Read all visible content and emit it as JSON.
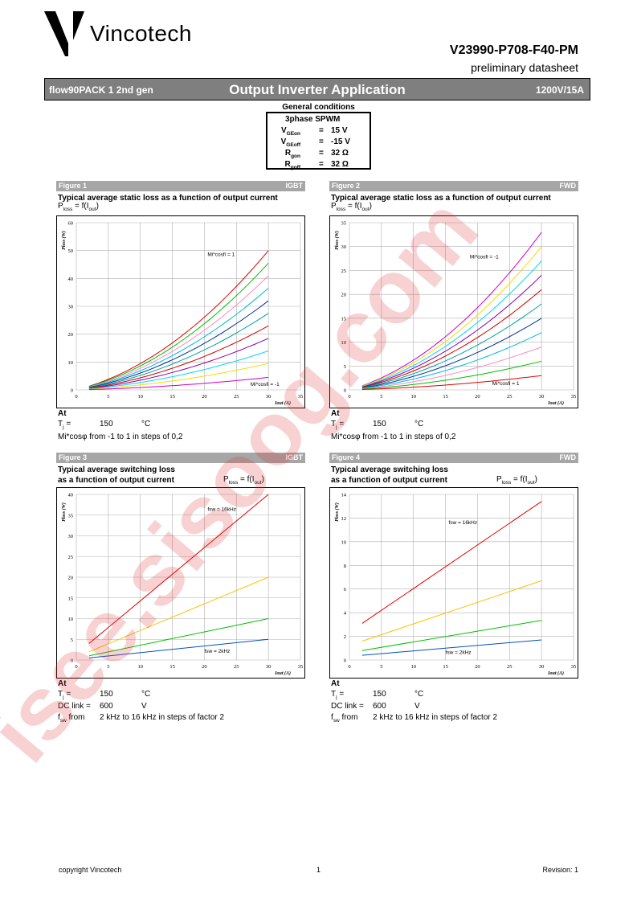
{
  "header": {
    "company": "Vincotech",
    "part_number": "V23990-P708-F40-PM",
    "doc_type": "preliminary datasheet"
  },
  "title_bar": {
    "product": "flow90PACK 1 2nd gen",
    "title": "Output Inverter Application",
    "rating": "1200V/15A"
  },
  "general_conditions": {
    "title": "General conditions",
    "mode": "3phase SPWM",
    "rows": [
      {
        "symbol": "V",
        "sub": "GEon",
        "eq": "=",
        "value": "15 V"
      },
      {
        "symbol": "V",
        "sub": "GEoff",
        "eq": "=",
        "value": "-15 V"
      },
      {
        "symbol": "R",
        "sub": "gon",
        "eq": "=",
        "value": "32 Ω"
      },
      {
        "symbol": "R",
        "sub": "goff",
        "eq": "=",
        "value": "32 Ω"
      }
    ]
  },
  "figures": [
    {
      "label": "Figure 1",
      "device": "IGBT",
      "title1": "Typical average static loss as a function of output current",
      "title2": "",
      "fn_p": "P",
      "fn_sub": "loss",
      "fn_mid": " = f(I",
      "fn_sub2": "out",
      "fn_end": ")",
      "conditions": {
        "at": "At",
        "tj_sym": "T",
        "tj_sub": "j",
        "tj_eq": " =",
        "tj_val": "150",
        "tj_unit": "°C",
        "line2": "Mi*cosφ from -1 to 1 in steps of 0,2",
        "line3_a": "",
        "line3_b": "",
        "line3_c": ""
      }
    },
    {
      "label": "Figure 2",
      "device": "FWD",
      "title1": "Typical average static loss as a function of output current",
      "title2": "",
      "fn_p": "P",
      "fn_sub": "loss",
      "fn_mid": " = f(I",
      "fn_sub2": "out",
      "fn_end": ")",
      "conditions": {
        "at": "At",
        "tj_sym": "T",
        "tj_sub": "j",
        "tj_eq": " =",
        "tj_val": "150",
        "tj_unit": "°C",
        "line2": "Mi*cosφ from -1 to 1 in steps of 0,2",
        "line3_a": "",
        "line3_b": "",
        "line3_c": ""
      }
    },
    {
      "label": "Figure 3",
      "device": "IGBT",
      "title1": "Typical average switching loss",
      "title2": "as a function of output current",
      "fn_p": "P",
      "fn_sub": "loss",
      "fn_mid": " = f(I",
      "fn_sub2": "out",
      "fn_end": ")",
      "conditions": {
        "at": "At",
        "tj_sym": "T",
        "tj_sub": "j",
        "tj_eq": " =",
        "tj_val": "150",
        "tj_unit": "°C",
        "line2": "",
        "dc_label": "DC link =",
        "dc_val": "600",
        "dc_unit": "V",
        "fsw_sym": "f",
        "fsw_sub": "sw",
        "fsw_from": " from",
        "fsw_text": "2 kHz to 16 kHz in steps of factor 2"
      }
    },
    {
      "label": "Figure 4",
      "device": "FWD",
      "title1": "Typical average switching loss",
      "title2": "as a function of output current",
      "fn_p": "P",
      "fn_sub": "loss",
      "fn_mid": " = f(I",
      "fn_sub2": "out",
      "fn_end": ")",
      "conditions": {
        "at": "At",
        "tj_sym": "T",
        "tj_sub": "j",
        "tj_eq": " =",
        "tj_val": "150",
        "tj_unit": "°C",
        "line2": "",
        "dc_label": "DC link =",
        "dc_val": "600",
        "dc_unit": "V",
        "fsw_sym": "f",
        "fsw_sub": "sw",
        "fsw_from": " from",
        "fsw_text": "2 kHz to 16 kHz in steps of factor 2"
      }
    }
  ],
  "chart_data": [
    {
      "type": "line",
      "xlabel": "Iout (A)",
      "ylabel": "Ploss (W)",
      "xlim": [
        0,
        35
      ],
      "ylim": [
        0,
        60
      ],
      "xticks": [
        0,
        5,
        10,
        15,
        20,
        25,
        30,
        35
      ],
      "yticks": [
        0,
        10,
        20,
        30,
        40,
        50,
        60
      ],
      "grid": true,
      "x": [
        2,
        30
      ],
      "annotations": [
        {
          "text": "Mi*cosfi = 1",
          "x": 20.5,
          "y": 48
        },
        {
          "text": "Mi*cosfi = -1",
          "x": 27.2,
          "y": 1.5
        }
      ],
      "series": [
        {
          "color": "#e00000",
          "y_end": 50.0
        },
        {
          "color": "#00c000",
          "y_end": 45.5
        },
        {
          "color": "#ff88cc",
          "y_end": 41.0
        },
        {
          "color": "#00b8e0",
          "y_end": 36.5
        },
        {
          "color": "#003399",
          "y_end": 32.0
        },
        {
          "color": "#00a0a0",
          "y_end": 27.5
        },
        {
          "color": "#cc0000",
          "y_end": 23.0
        },
        {
          "color": "#8800aa",
          "y_end": 18.5
        },
        {
          "color": "#00d8f0",
          "y_end": 14.0
        },
        {
          "color": "#f0e000",
          "y_end": 9.5
        },
        {
          "color": "#cc00cc",
          "y_end": 4.5
        }
      ]
    },
    {
      "type": "line",
      "xlabel": "Iout (A)",
      "ylabel": "Ploss (W)",
      "xlim": [
        0,
        35
      ],
      "ylim": [
        0,
        35
      ],
      "xticks": [
        0,
        5,
        10,
        15,
        20,
        25,
        30,
        35
      ],
      "yticks": [
        0,
        5,
        10,
        15,
        20,
        25,
        30,
        35
      ],
      "grid": true,
      "x": [
        2,
        30
      ],
      "annotations": [
        {
          "text": "Mi*cosfi = -1",
          "x": 18.8,
          "y": 27.5
        },
        {
          "text": "Mi*cosfi = 1",
          "x": 22.3,
          "y": 1
        }
      ],
      "series": [
        {
          "color": "#cc00cc",
          "y_end": 33.0
        },
        {
          "color": "#f0e000",
          "y_end": 30.0
        },
        {
          "color": "#00d8f0",
          "y_end": 27.0
        },
        {
          "color": "#8800aa",
          "y_end": 24.0
        },
        {
          "color": "#cc0000",
          "y_end": 21.0
        },
        {
          "color": "#00a0a0",
          "y_end": 18.0
        },
        {
          "color": "#003399",
          "y_end": 15.0
        },
        {
          "color": "#00b8e0",
          "y_end": 12.0
        },
        {
          "color": "#ff88cc",
          "y_end": 9.0
        },
        {
          "color": "#00c000",
          "y_end": 6.0
        },
        {
          "color": "#e00000",
          "y_end": 3.0
        }
      ]
    },
    {
      "type": "line",
      "xlabel": "Iout (A)",
      "ylabel": "Ploss (W)",
      "xlim": [
        0,
        35
      ],
      "ylim": [
        0,
        40
      ],
      "xticks": [
        0,
        5,
        10,
        15,
        20,
        25,
        30,
        35
      ],
      "yticks": [
        0,
        5,
        10,
        15,
        20,
        25,
        30,
        35,
        40
      ],
      "grid": true,
      "annotations": [
        {
          "text": "fsw = 16kHz",
          "x": 20.5,
          "y": 36
        },
        {
          "text": "fsw = 2kHz",
          "x": 20,
          "y": 1.7
        }
      ],
      "series": [
        {
          "color": "#e00000",
          "x": [
            2,
            30
          ],
          "y": [
            4.0,
            40.0
          ]
        },
        {
          "color": "#ffc000",
          "x": [
            2,
            30
          ],
          "y": [
            2.0,
            20.0
          ]
        },
        {
          "color": "#00c000",
          "x": [
            2,
            30
          ],
          "y": [
            1.0,
            10.0
          ]
        },
        {
          "color": "#0050c0",
          "x": [
            2,
            30
          ],
          "y": [
            0.5,
            5.0
          ]
        }
      ]
    },
    {
      "type": "line",
      "xlabel": "Iout (A)",
      "ylabel": "Ploss (W)",
      "xlim": [
        0,
        35
      ],
      "ylim": [
        0,
        14
      ],
      "xticks": [
        0,
        5,
        10,
        15,
        20,
        25,
        30,
        35
      ],
      "yticks": [
        0,
        2,
        4,
        6,
        8,
        10,
        12,
        14
      ],
      "grid": true,
      "annotations": [
        {
          "text": "fsw = 16kHz",
          "x": 15.5,
          "y": 11.5
        },
        {
          "text": "fsw = 2kHz",
          "x": 15,
          "y": 0.5
        }
      ],
      "series": [
        {
          "color": "#e00000",
          "x": [
            2,
            30
          ],
          "y": [
            3.1,
            13.4
          ]
        },
        {
          "color": "#ffc000",
          "x": [
            2,
            30
          ],
          "y": [
            1.6,
            6.7
          ]
        },
        {
          "color": "#00c000",
          "x": [
            2,
            30
          ],
          "y": [
            0.8,
            3.35
          ]
        },
        {
          "color": "#0050c0",
          "x": [
            2,
            30
          ],
          "y": [
            0.4,
            1.7
          ]
        }
      ]
    }
  ],
  "footer": {
    "copyright": "copyright Vincotech",
    "page": "1",
    "revision": "Revision: 1"
  },
  "watermark": "isee.sisoog.com"
}
